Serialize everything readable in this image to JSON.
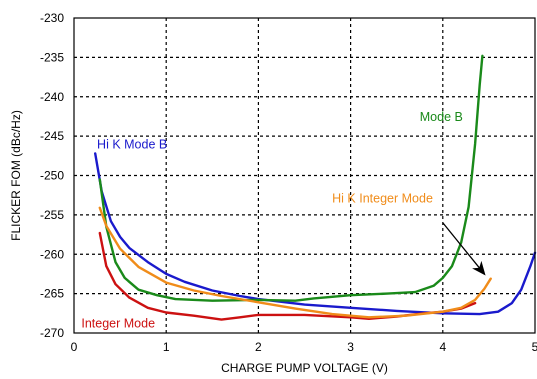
{
  "chart_data": {
    "type": "line",
    "xlabel": "CHARGE PUMP VOLTAGE (V)",
    "ylabel": "FLICKER FOM (dBc/Hz)",
    "xlim": [
      0,
      5
    ],
    "ylim": [
      -270,
      -230
    ],
    "xticks": [
      "0",
      "1",
      "2",
      "3",
      "4",
      "5"
    ],
    "yticks": [
      "-230",
      "-235",
      "-240",
      "-245",
      "-250",
      "-255",
      "-260",
      "-265",
      "-270"
    ],
    "grid": "dashed",
    "series": [
      {
        "name": "Hi K Mode B",
        "color": "#1a1acc",
        "label_pos": [
          0.25,
          -246.6
        ],
        "points": [
          [
            0.23,
            -247.2
          ],
          [
            0.3,
            -252.0
          ],
          [
            0.4,
            -255.8
          ],
          [
            0.5,
            -257.8
          ],
          [
            0.6,
            -259.2
          ],
          [
            0.8,
            -261.0
          ],
          [
            1.0,
            -262.5
          ],
          [
            1.2,
            -263.5
          ],
          [
            1.5,
            -264.6
          ],
          [
            1.8,
            -265.3
          ],
          [
            2.0,
            -265.7
          ],
          [
            2.5,
            -266.4
          ],
          [
            3.0,
            -266.8
          ],
          [
            3.5,
            -267.2
          ],
          [
            4.0,
            -267.5
          ],
          [
            4.4,
            -267.6
          ],
          [
            4.6,
            -267.3
          ],
          [
            4.75,
            -266.2
          ],
          [
            4.85,
            -264.5
          ],
          [
            4.95,
            -261.5
          ],
          [
            5.0,
            -259.8
          ]
        ]
      },
      {
        "name": "Integer Mode",
        "color": "#cc1111",
        "label_pos": [
          0.08,
          -269.3
        ],
        "points": [
          [
            0.28,
            -257.3
          ],
          [
            0.35,
            -261.5
          ],
          [
            0.45,
            -263.8
          ],
          [
            0.6,
            -265.5
          ],
          [
            0.8,
            -266.8
          ],
          [
            1.0,
            -267.4
          ],
          [
            1.3,
            -267.8
          ],
          [
            1.6,
            -268.3
          ],
          [
            1.8,
            -268.0
          ],
          [
            2.0,
            -267.7
          ],
          [
            2.5,
            -267.7
          ],
          [
            3.0,
            -268.0
          ],
          [
            3.2,
            -268.2
          ],
          [
            3.5,
            -267.9
          ],
          [
            3.8,
            -267.5
          ],
          [
            4.0,
            -267.3
          ],
          [
            4.2,
            -266.9
          ],
          [
            4.35,
            -266.2
          ]
        ]
      },
      {
        "name": "Mode B",
        "color": "#1a8a1a",
        "label_pos": [
          3.75,
          -243.1
        ],
        "points": [
          [
            0.28,
            -250.5
          ],
          [
            0.35,
            -256.5
          ],
          [
            0.45,
            -261.0
          ],
          [
            0.55,
            -263.0
          ],
          [
            0.7,
            -264.5
          ],
          [
            0.9,
            -265.2
          ],
          [
            1.1,
            -265.7
          ],
          [
            1.5,
            -265.9
          ],
          [
            2.0,
            -265.8
          ],
          [
            2.4,
            -265.9
          ],
          [
            2.6,
            -265.6
          ],
          [
            3.0,
            -265.2
          ],
          [
            3.4,
            -265.0
          ],
          [
            3.7,
            -264.8
          ],
          [
            3.9,
            -264.0
          ],
          [
            4.0,
            -263.0
          ],
          [
            4.1,
            -261.5
          ],
          [
            4.2,
            -258.5
          ],
          [
            4.28,
            -254.0
          ],
          [
            4.35,
            -246.0
          ],
          [
            4.4,
            -238.5
          ],
          [
            4.43,
            -234.8
          ]
        ]
      },
      {
        "name": "Hi K Integer Mode",
        "color": "#f08c1a",
        "label_pos": [
          2.8,
          -253.4
        ],
        "points": [
          [
            0.28,
            -254.1
          ],
          [
            0.35,
            -256.4
          ],
          [
            0.5,
            -259.3
          ],
          [
            0.7,
            -261.6
          ],
          [
            1.0,
            -263.6
          ],
          [
            1.3,
            -264.6
          ],
          [
            1.6,
            -265.3
          ],
          [
            2.0,
            -266.1
          ],
          [
            2.4,
            -266.9
          ],
          [
            2.8,
            -267.6
          ],
          [
            3.2,
            -268.0
          ],
          [
            3.6,
            -267.8
          ],
          [
            4.0,
            -267.3
          ],
          [
            4.2,
            -266.8
          ],
          [
            4.35,
            -265.8
          ],
          [
            4.45,
            -264.4
          ],
          [
            4.52,
            -263.1
          ]
        ]
      }
    ],
    "annotation": {
      "type": "arrow",
      "from": [
        4.0,
        -256.0
      ],
      "to": [
        4.45,
        -262.5
      ]
    }
  }
}
